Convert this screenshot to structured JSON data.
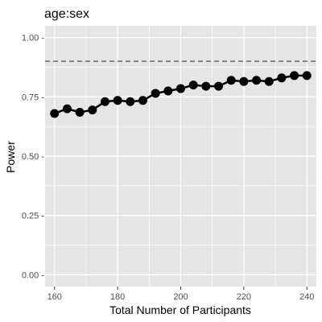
{
  "chart_data": {
    "type": "line",
    "title": "age:sex",
    "xlabel": "Total Number of Participants",
    "ylabel": "Power",
    "x": [
      160,
      164,
      168,
      172,
      176,
      180,
      184,
      188,
      192,
      196,
      200,
      204,
      208,
      212,
      216,
      220,
      224,
      228,
      232,
      236,
      240
    ],
    "series": [
      {
        "values": [
          0.68,
          0.7,
          0.685,
          0.695,
          0.73,
          0.735,
          0.73,
          0.735,
          0.765,
          0.775,
          0.785,
          0.8,
          0.795,
          0.795,
          0.82,
          0.815,
          0.82,
          0.815,
          0.83,
          0.84,
          0.84
        ]
      }
    ],
    "reference_line": {
      "y": 0.9,
      "style": "dashed",
      "color": "#666666"
    },
    "xlim": [
      157,
      243
    ],
    "ylim": [
      -0.05,
      1.05
    ],
    "x_ticks": [
      160,
      180,
      200,
      220,
      240
    ],
    "x_tick_labels": [
      "160",
      "180",
      "200",
      "220",
      "240"
    ],
    "y_ticks": [
      0,
      0.25,
      0.5,
      0.75,
      1
    ],
    "y_tick_labels": [
      "0.00 -",
      "0.25 -",
      "0.50 -",
      "0.75 -",
      "1.00 -"
    ],
    "grid": true,
    "colors": {
      "panel": "#e5e5e5",
      "grid": "#ffffff",
      "series": "#000000"
    }
  }
}
